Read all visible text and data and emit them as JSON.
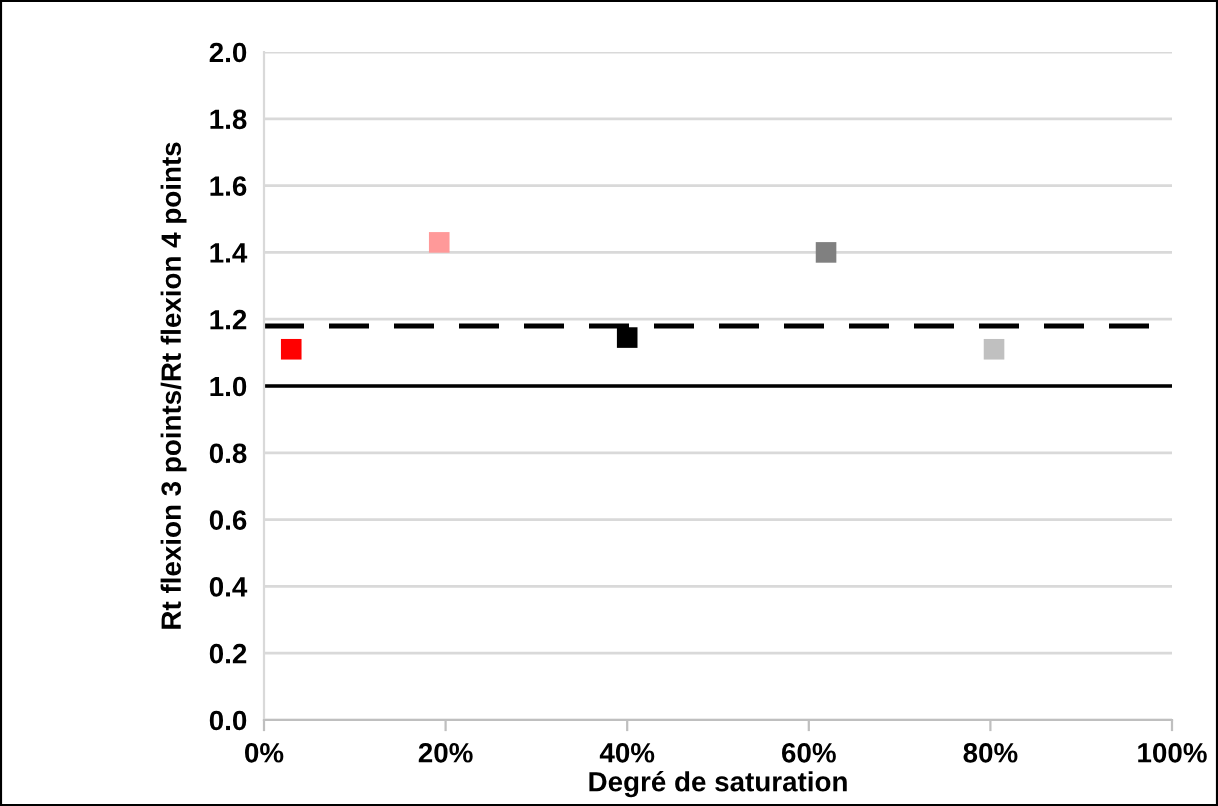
{
  "chart_data": {
    "type": "scatter",
    "xlabel": "Degré de saturation",
    "ylabel": "Rt flexion 3 points/Rt flexion 4 points",
    "x": [
      3.0,
      19.3,
      40.0,
      61.9,
      80.4
    ],
    "values": [
      1.11,
      1.43,
      1.145,
      1.4,
      1.11
    ],
    "colors": [
      "#ff0000",
      "#ff9999",
      "#000000",
      "#808080",
      "#c0c0c0"
    ],
    "marker": "square",
    "xlim": [
      0,
      100
    ],
    "xticks": [
      {
        "value": 0,
        "label": "0%"
      },
      {
        "value": 20,
        "label": "20%"
      },
      {
        "value": 40,
        "label": "40%"
      },
      {
        "value": 60,
        "label": "60%"
      },
      {
        "value": 80,
        "label": "80%"
      },
      {
        "value": 100,
        "label": "100%"
      }
    ],
    "ylim": [
      0,
      2.0
    ],
    "yticks": [
      {
        "value": 0,
        "label": "0.0"
      },
      {
        "value": 0.2,
        "label": "0.2"
      },
      {
        "value": 0.4,
        "label": "0.4"
      },
      {
        "value": 0.6,
        "label": "0.6"
      },
      {
        "value": 0.8,
        "label": "0.8"
      },
      {
        "value": 1.0,
        "label": "1.0"
      },
      {
        "value": 1.2,
        "label": "1.2"
      },
      {
        "value": 1.4,
        "label": "1.4"
      },
      {
        "value": 1.6,
        "label": "1.6"
      },
      {
        "value": 1.8,
        "label": "1.8"
      },
      {
        "value": 2.0,
        "label": "2.0"
      }
    ],
    "ref_lines": [
      {
        "axis": "y",
        "value": 1.0,
        "color": "#000000",
        "line_style": "solid"
      },
      {
        "axis": "y",
        "value": 1.18,
        "color": "#000000",
        "line_style": "dashed"
      }
    ],
    "grid": "y"
  }
}
